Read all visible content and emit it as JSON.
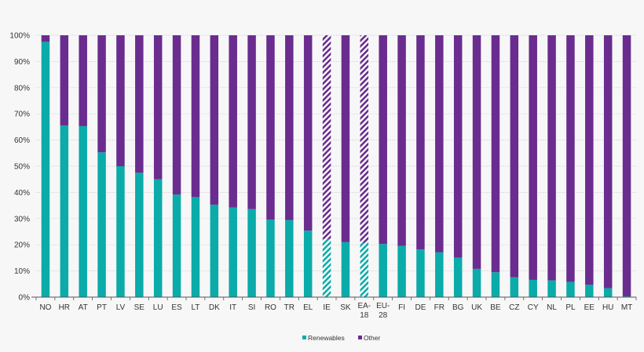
{
  "chart_data": {
    "type": "bar",
    "stacked": true,
    "percent": true,
    "title": "",
    "xlabel": "",
    "ylabel": "",
    "ylim": [
      0,
      100
    ],
    "yticks": [
      "0%",
      "10%",
      "20%",
      "30%",
      "40%",
      "50%",
      "60%",
      "70%",
      "80%",
      "90%",
      "100%"
    ],
    "grid": true,
    "legend_position": "bottom",
    "categories": [
      "NO",
      "HR",
      "AT",
      "PT",
      "LV",
      "SE",
      "LU",
      "ES",
      "LT",
      "DK",
      "IT",
      "SI",
      "RO",
      "TR",
      "EL",
      "IE",
      "SK",
      "EA-18",
      "EU-28",
      "FI",
      "DE",
      "FR",
      "BG",
      "UK",
      "BE",
      "CZ",
      "CY",
      "NL",
      "PL",
      "EE",
      "HU",
      "MT"
    ],
    "hatched_categories": [
      "IE",
      "EA-18"
    ],
    "series": [
      {
        "name": "Renewables",
        "color": "#0aaba9",
        "values": [
          97.5,
          65.5,
          65.3,
          55.3,
          50.0,
          47.5,
          45.0,
          39.2,
          38.2,
          35.3,
          34.2,
          33.6,
          29.6,
          29.4,
          25.4,
          22.2,
          21.0,
          20.8,
          20.3,
          19.6,
          18.2,
          17.1,
          15.1,
          10.8,
          9.5,
          7.6,
          6.6,
          6.4,
          5.8,
          4.7,
          3.4,
          0.3
        ]
      },
      {
        "name": "Other",
        "color": "#6a2c8e",
        "values": [
          2.5,
          34.5,
          34.7,
          44.7,
          50.0,
          52.5,
          55.0,
          60.8,
          61.8,
          64.7,
          65.8,
          66.4,
          70.4,
          70.6,
          74.6,
          77.8,
          79.0,
          79.2,
          79.7,
          80.4,
          81.8,
          82.9,
          84.9,
          89.2,
          90.5,
          92.4,
          93.4,
          93.6,
          94.2,
          95.3,
          96.6,
          99.7
        ]
      }
    ]
  }
}
